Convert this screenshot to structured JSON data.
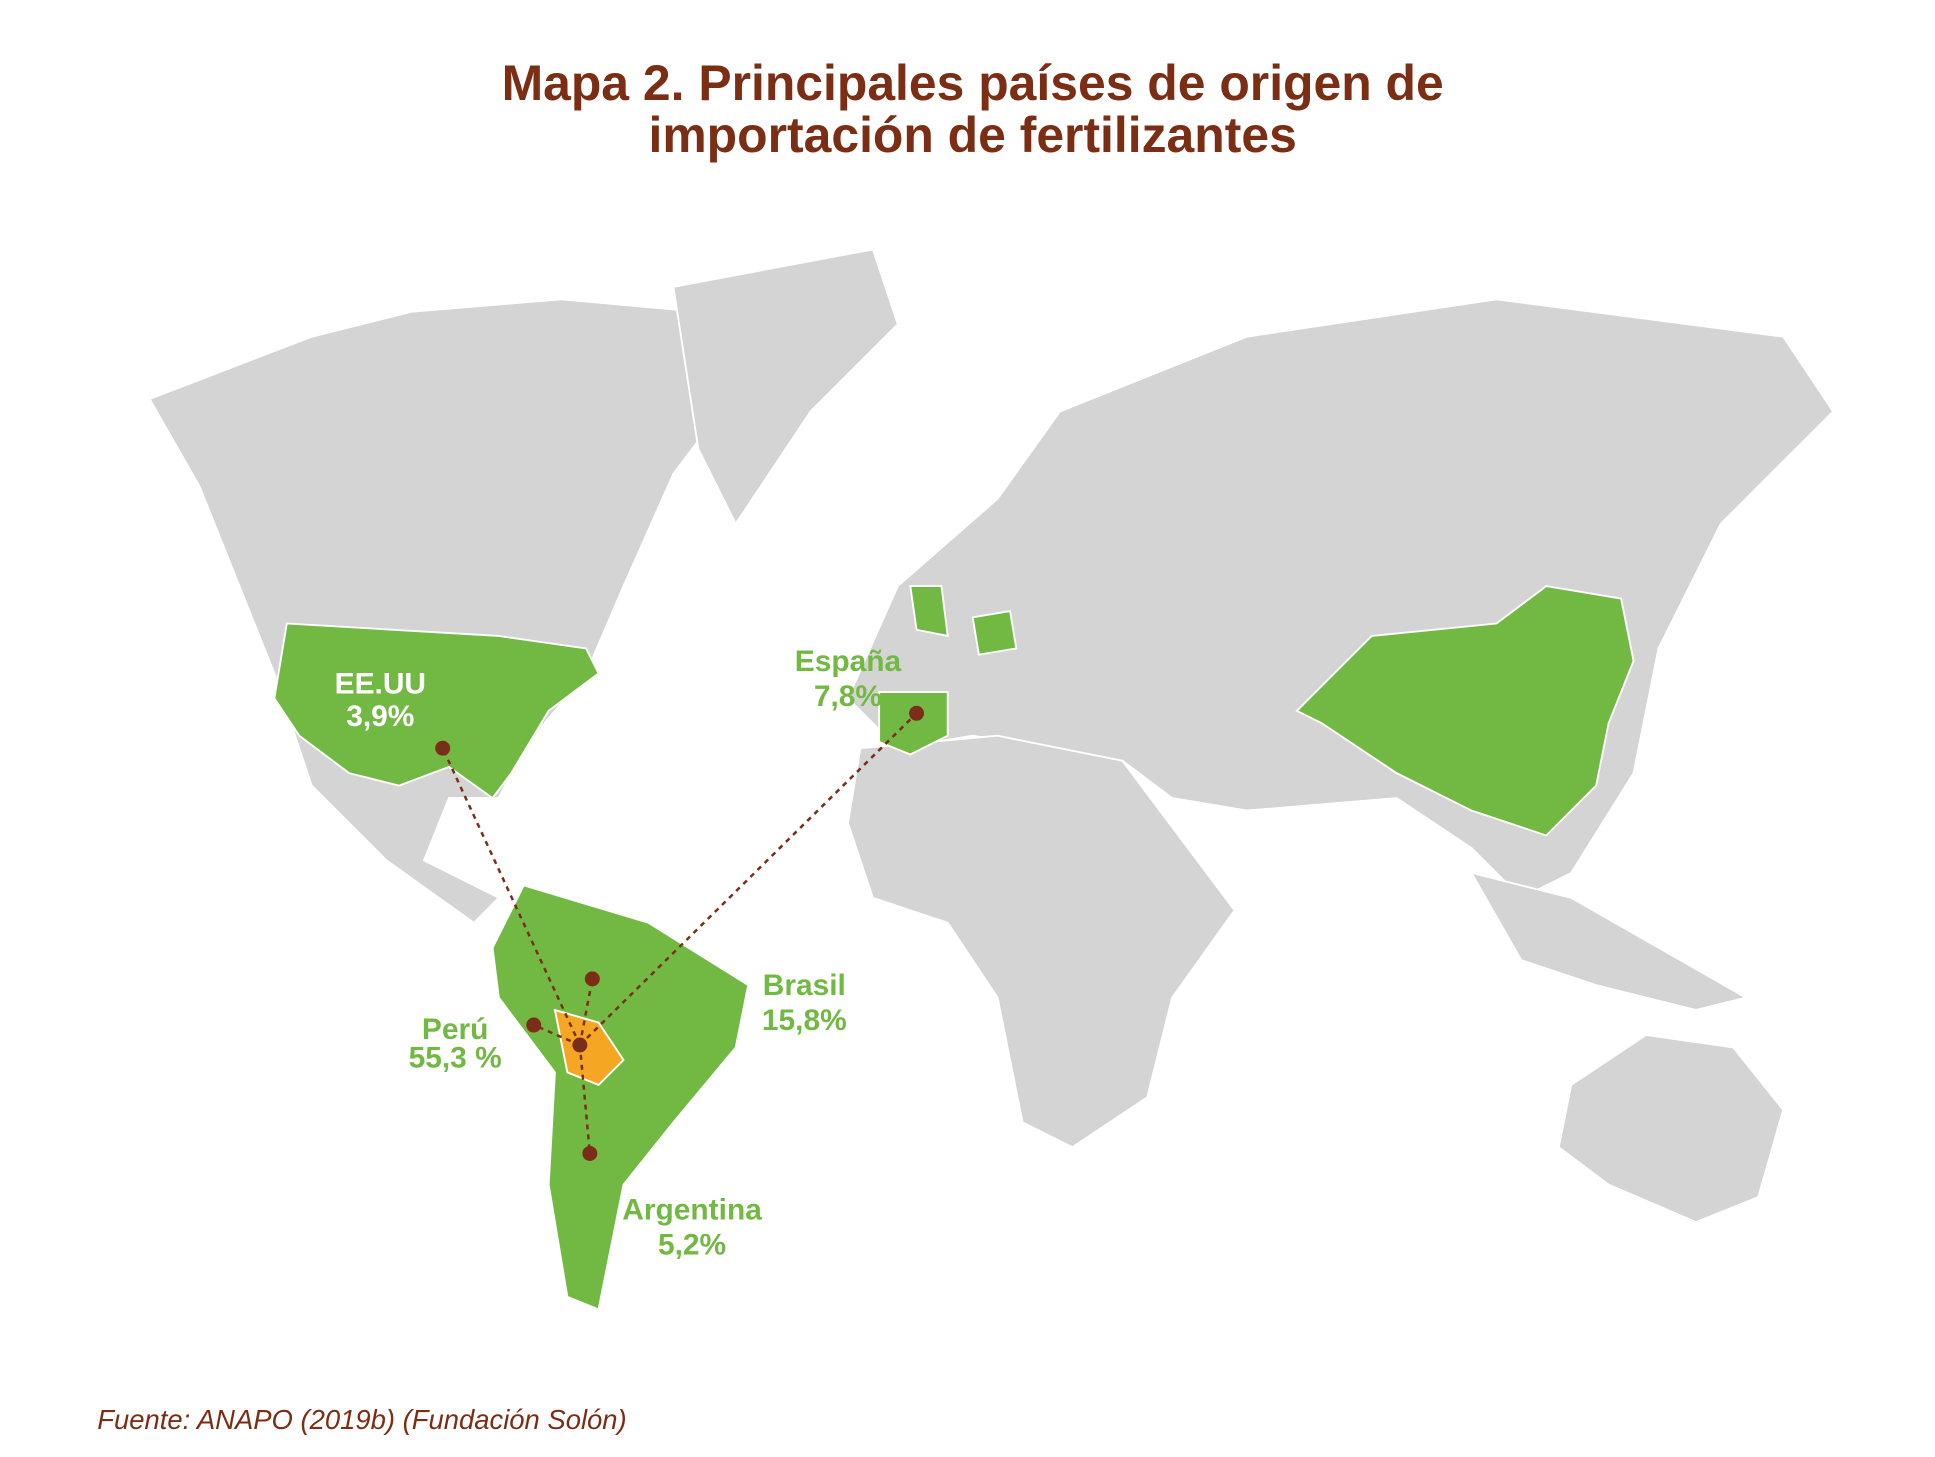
{
  "title": [
    "Mapa 2. Principales países de origen de",
    "importación de fertilizantes"
  ],
  "countries": [
    {
      "name": "EE.UU",
      "label": "3,9%"
    },
    {
      "name": "España",
      "label": "7,8%"
    },
    {
      "name": "Brasil",
      "label": "15,8%"
    },
    {
      "name": "Perú",
      "label": "55,3 %"
    },
    {
      "name": "Argentina",
      "label": "5,2%"
    }
  ],
  "source": "Fuente: ANAPO (2019b) (Fundación Solón)"
}
